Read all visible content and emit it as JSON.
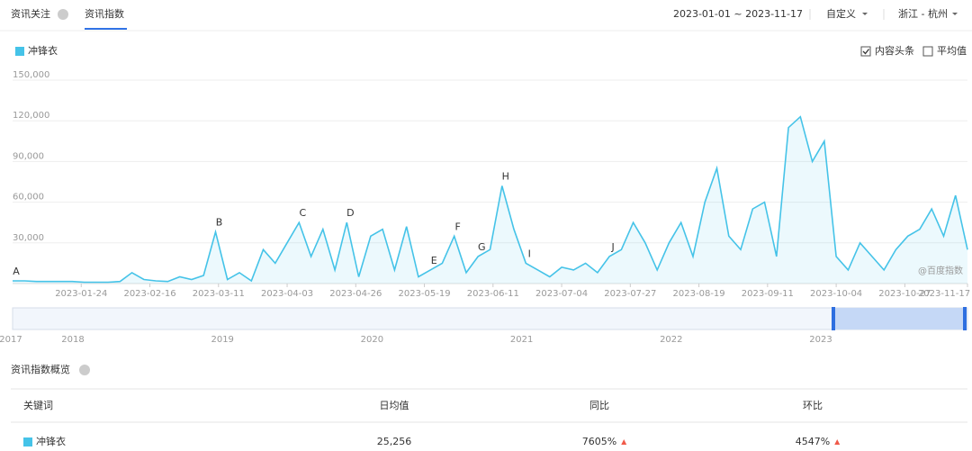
{
  "header": {
    "tabs": [
      "资讯关注",
      "资讯指数"
    ],
    "active_tab": 1,
    "date_range": "2023-01-01 ~ 2023-11-17",
    "mode": "自定义",
    "region": "浙江 - 杭州"
  },
  "options": [
    {
      "label": "内容头条",
      "checked": true
    },
    {
      "label": "平均值",
      "checked": false
    }
  ],
  "chart_data": {
    "type": "line",
    "watermark": "@百度指数",
    "x": [
      "2023-01-01",
      "2023-01-05",
      "2023-01-09",
      "2023-01-13",
      "2023-01-17",
      "2023-01-21",
      "2023-01-25",
      "2023-01-29",
      "2023-02-02",
      "2023-02-06",
      "2023-02-10",
      "2023-02-14",
      "2023-02-18",
      "2023-02-22",
      "2023-02-26",
      "2023-03-02",
      "2023-03-06",
      "2023-03-10",
      "2023-03-14",
      "2023-03-18",
      "2023-03-22",
      "2023-03-26",
      "2023-03-30",
      "2023-04-03",
      "2023-04-07",
      "2023-04-11",
      "2023-04-15",
      "2023-04-19",
      "2023-04-23",
      "2023-04-27",
      "2023-05-01",
      "2023-05-05",
      "2023-05-09",
      "2023-05-13",
      "2023-05-17",
      "2023-05-21",
      "2023-05-25",
      "2023-05-29",
      "2023-06-02",
      "2023-06-06",
      "2023-06-10",
      "2023-06-14",
      "2023-06-18",
      "2023-06-22",
      "2023-06-26",
      "2023-06-30",
      "2023-07-04",
      "2023-07-08",
      "2023-07-12",
      "2023-07-16",
      "2023-07-20",
      "2023-07-24",
      "2023-07-28",
      "2023-08-01",
      "2023-08-05",
      "2023-08-09",
      "2023-08-13",
      "2023-08-17",
      "2023-08-21",
      "2023-08-25",
      "2023-08-29",
      "2023-09-02",
      "2023-09-06",
      "2023-09-10",
      "2023-09-14",
      "2023-09-18",
      "2023-09-22",
      "2023-09-26",
      "2023-09-30",
      "2023-10-04",
      "2023-10-08",
      "2023-10-12",
      "2023-10-16",
      "2023-10-20",
      "2023-10-24",
      "2023-10-28",
      "2023-11-01",
      "2023-11-05",
      "2023-11-09",
      "2023-11-13",
      "2023-11-17"
    ],
    "series": [
      {
        "name": "冲锋衣",
        "color": "#45c3e8",
        "values": [
          2000,
          2000,
          1500,
          1500,
          1500,
          1500,
          1000,
          1000,
          1000,
          1500,
          8000,
          3000,
          2000,
          1500,
          5000,
          3000,
          6000,
          38000,
          3000,
          8000,
          2000,
          25000,
          15000,
          30000,
          45000,
          20000,
          40000,
          10000,
          45000,
          5000,
          35000,
          40000,
          10000,
          42000,
          5000,
          10000,
          15000,
          35000,
          8000,
          20000,
          25000,
          72000,
          40000,
          15000,
          10000,
          5000,
          12000,
          10000,
          15000,
          8000,
          20000,
          25000,
          45000,
          30000,
          10000,
          30000,
          45000,
          20000,
          60000,
          85000,
          35000,
          25000,
          55000,
          60000,
          20000,
          115000,
          123000,
          90000,
          105000,
          20000,
          10000,
          30000,
          20000,
          10000,
          25000,
          35000,
          40000,
          55000,
          35000,
          65000,
          25000
        ]
      }
    ],
    "xlim": [
      "2023-01-01",
      "2023-11-17"
    ],
    "xticks": [
      "2023-01-24",
      "2023-02-16",
      "2023-03-11",
      "2023-04-03",
      "2023-04-26",
      "2023-05-19",
      "2023-06-11",
      "2023-07-04",
      "2023-07-27",
      "2023-08-19",
      "2023-09-11",
      "2023-10-04",
      "2023-10-27",
      "2023-11-17"
    ],
    "ylim": [
      0,
      150000
    ],
    "yticks": [
      {
        "value": 30000,
        "label": "30,000"
      },
      {
        "value": 60000,
        "label": "60,000"
      },
      {
        "value": 90000,
        "label": "90,000"
      },
      {
        "value": 120000,
        "label": "120,000"
      },
      {
        "value": 150000,
        "label": "150,000"
      }
    ],
    "grid": true,
    "annotations": [
      {
        "label": "A",
        "x": "2023-01-01"
      },
      {
        "label": "B",
        "x": "2023-03-10"
      },
      {
        "label": "C",
        "x": "2023-04-07"
      },
      {
        "label": "D",
        "x": "2023-04-23"
      },
      {
        "label": "E",
        "x": "2023-05-21"
      },
      {
        "label": "F",
        "x": "2023-05-29"
      },
      {
        "label": "G",
        "x": "2023-06-06"
      },
      {
        "label": "H",
        "x": "2023-06-14"
      },
      {
        "label": "I",
        "x": "2023-06-22"
      },
      {
        "label": "J",
        "x": "2023-07-20"
      }
    ]
  },
  "navigator": {
    "years": [
      "2017",
      "2018",
      "2019",
      "2020",
      "2021",
      "2022",
      "2023"
    ]
  },
  "summary": {
    "title": "资讯指数概览",
    "columns": [
      "关键词",
      "日均值",
      "同比",
      "环比"
    ],
    "rows": [
      [
        "冲锋衣",
        "25,256",
        "7605%",
        "4547%"
      ]
    ]
  }
}
